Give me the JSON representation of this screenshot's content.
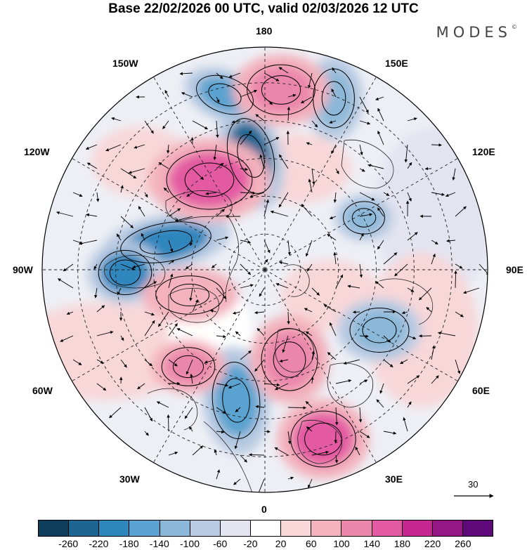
{
  "title": "Base 22/02/2026 00 UTC, valid 02/03/2026 12 UTC",
  "brand": {
    "name": "MODES",
    "mark": "©"
  },
  "map": {
    "projection": "north polar stereographic",
    "longitude_labels": {
      "top": "180",
      "bottom": "0",
      "left": "90W",
      "right": "90E",
      "upper_left_1": "150W",
      "upper_left_2": "120W",
      "lower_left_1": "60W",
      "lower_left_2": "30W",
      "upper_right_1": "150E",
      "upper_right_2": "120E",
      "lower_right_1": "60E",
      "lower_right_2": "30E"
    }
  },
  "reference_vector": {
    "value": "30"
  },
  "colorbar": {
    "colors": [
      "#0e3e5c",
      "#1d6692",
      "#2f86bd",
      "#5aa2cf",
      "#8bb7d8",
      "#b9cbe2",
      "#e3e4f0",
      "#ffffff",
      "#f8d7d9",
      "#f3b2bd",
      "#eb86ab",
      "#e35aa2",
      "#c72592",
      "#951685",
      "#5f0a7b"
    ],
    "tick_labels": [
      "-260",
      "-220",
      "-180",
      "-140",
      "-100",
      "-60",
      "-20",
      "20",
      "60",
      "100",
      "140",
      "180",
      "220",
      "260"
    ]
  },
  "anomaly_centers": [
    {
      "kind": "negative",
      "level": "-200"
    },
    {
      "kind": "negative",
      "level": "-150"
    },
    {
      "kind": "negative",
      "level": "-140"
    },
    {
      "kind": "negative",
      "level": "-120"
    },
    {
      "kind": "negative",
      "level": "-100"
    },
    {
      "kind": "negative",
      "level": "-80"
    },
    {
      "kind": "negative",
      "level": "-80"
    },
    {
      "kind": "negative",
      "level": "-60"
    },
    {
      "kind": "positive",
      "level": "140"
    },
    {
      "kind": "positive",
      "level": "130"
    },
    {
      "kind": "positive",
      "level": "140"
    },
    {
      "kind": "positive",
      "level": "120"
    },
    {
      "kind": "positive",
      "level": "110"
    },
    {
      "kind": "positive",
      "level": "80"
    }
  ]
}
